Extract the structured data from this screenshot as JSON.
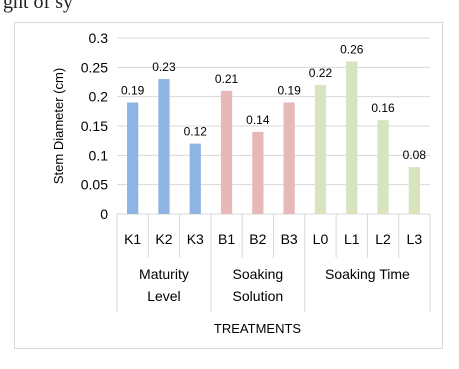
{
  "top_fragment": "ght of sy",
  "chart_data": {
    "type": "bar",
    "ylabel": "Stem Diameter (cm)",
    "xlabel": "TREATMENTS",
    "ylim": [
      0,
      0.3
    ],
    "yticks": [
      "0",
      "0.05",
      "0.1",
      "0.15",
      "0.2",
      "0.25",
      "0.3"
    ],
    "grid": true,
    "groups": [
      {
        "name": "Maturity Level",
        "name_lines": [
          "Maturity",
          "Level"
        ],
        "color": "#8EB4E3",
        "categories": [
          "K1",
          "K2",
          "K3"
        ],
        "values": [
          0.19,
          0.23,
          0.12
        ],
        "labels": [
          "0.19",
          "0.23",
          "0.12"
        ]
      },
      {
        "name": "Soaking Solution",
        "name_lines": [
          "Soaking",
          "Solution"
        ],
        "color": "#E6B9B8",
        "categories": [
          "B1",
          "B2",
          "B3"
        ],
        "values": [
          0.21,
          0.14,
          0.19
        ],
        "labels": [
          "0.21",
          "0.14",
          "0.19"
        ]
      },
      {
        "name": "Soaking Time",
        "name_lines": [
          "Soaking Time"
        ],
        "color": "#D7E4BD",
        "categories": [
          "L0",
          "L1",
          "L2",
          "L3"
        ],
        "values": [
          0.22,
          0.26,
          0.16,
          0.08
        ],
        "labels": [
          "0.22",
          "0.26",
          "0.16",
          "0.08"
        ]
      }
    ]
  }
}
